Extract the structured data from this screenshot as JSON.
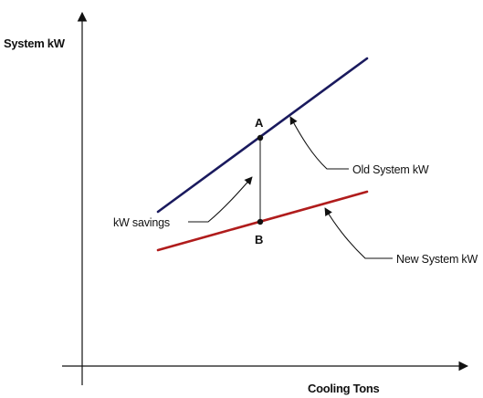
{
  "axes": {
    "y_label": "System kW",
    "x_label": "Cooling Tons"
  },
  "points": {
    "a_label": "A",
    "b_label": "B"
  },
  "callouts": {
    "old_system": "Old System kW",
    "new_system": "New System kW",
    "savings": "kW savings"
  },
  "colors": {
    "old_line": "#1a1a5e",
    "new_line": "#b01c1c",
    "axis": "#111111",
    "callout": "#111111"
  }
}
